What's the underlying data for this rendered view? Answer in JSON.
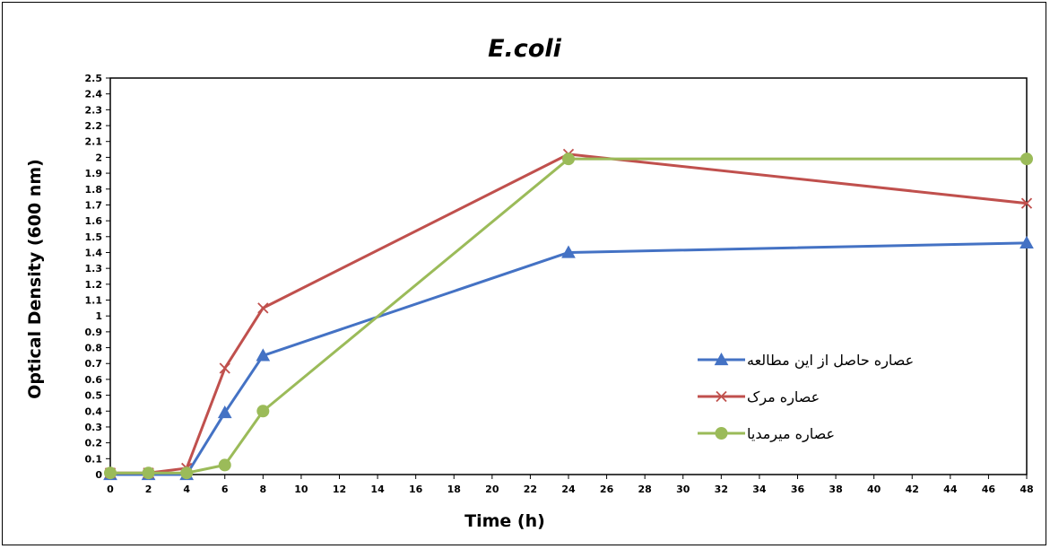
{
  "chart_data": {
    "type": "line",
    "title": "E.coli",
    "xlabel": "Time (h)",
    "ylabel": "Optical Density (600 nm)",
    "xlim": [
      0,
      48
    ],
    "ylim": [
      0,
      2.5
    ],
    "x_ticks": [
      "0",
      "2",
      "4",
      "6",
      "8",
      "10",
      "12",
      "14",
      "16",
      "18",
      "20",
      "22",
      "24",
      "26",
      "28",
      "30",
      "32",
      "34",
      "36",
      "38",
      "40",
      "42",
      "44",
      "46",
      "48"
    ],
    "y_ticks": [
      "0",
      "0.1",
      "0.2",
      "0.3",
      "0.4",
      "0.5",
      "0.6",
      "0.7",
      "0.8",
      "0.9",
      "1",
      "1.1",
      "1.2",
      "1.3",
      "1.4",
      "1.5",
      "1.6",
      "1.7",
      "1.8",
      "1.9",
      "2",
      "2.1",
      "2.2",
      "2.3",
      "2.4",
      "2.5"
    ],
    "x": [
      0,
      2,
      4,
      6,
      8,
      24,
      48
    ],
    "grid": false,
    "legend_position": "right-middle",
    "series": [
      {
        "name": "عصاره حاصل از این مطالعه",
        "color": "#4472C4",
        "marker": "triangle",
        "values": [
          0,
          0,
          0,
          0.39,
          0.75,
          1.4,
          1.46
        ]
      },
      {
        "name": "عصاره مرک",
        "color": "#C0504D",
        "marker": "x",
        "values": [
          0.01,
          0.01,
          0.04,
          0.67,
          1.05,
          2.02,
          1.71
        ]
      },
      {
        "name": "عصاره میرمدیا",
        "color": "#9BBB59",
        "marker": "circle",
        "values": [
          0.01,
          0.01,
          0.01,
          0.06,
          0.4,
          1.99,
          1.99
        ]
      }
    ]
  }
}
